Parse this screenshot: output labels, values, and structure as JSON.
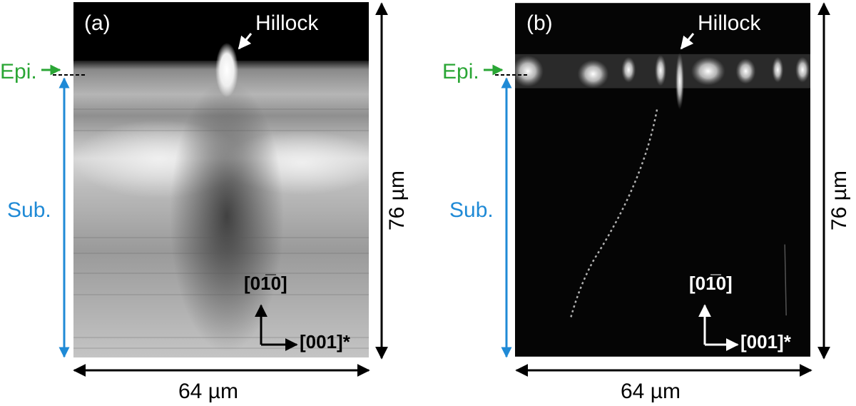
{
  "panels": [
    {
      "id": "a",
      "letter": "(a)",
      "hillock_label": "Hillock",
      "epi_label": "Epi.",
      "sub_label": "Sub.",
      "width_scale": "64 µm",
      "height_scale": "76 µm",
      "direction_vertical": "[01̅0]",
      "direction_horizontal": "[001]*",
      "contrast": "grayscale"
    },
    {
      "id": "b",
      "letter": "(b)",
      "hillock_label": "Hillock",
      "epi_label": "Epi.",
      "sub_label": "Sub.",
      "width_scale": "64 µm",
      "height_scale": "76 µm",
      "direction_vertical": "[01̅0]",
      "direction_horizontal": "[001]*",
      "contrast": "dark-field"
    }
  ],
  "colors": {
    "epi": "#2aa635",
    "sub": "#1f8ad6",
    "scale": "#000000"
  }
}
